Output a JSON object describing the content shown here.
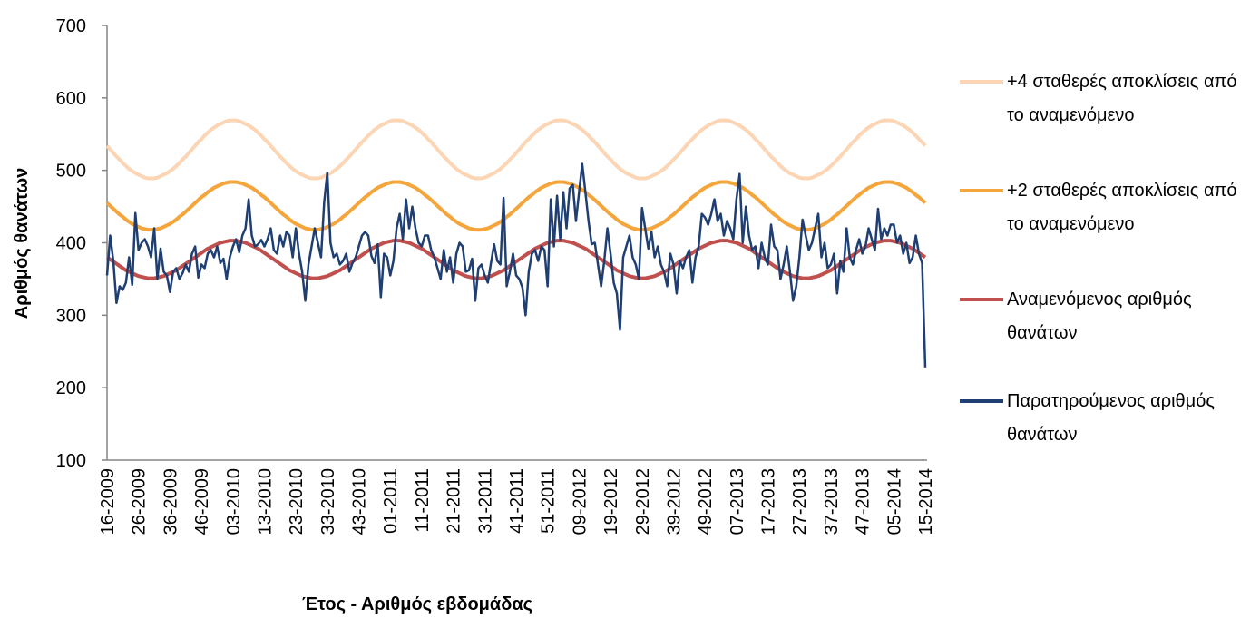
{
  "chart_data": {
    "type": "line",
    "x_label": "Έτος - Αριθμός εβδομάδας",
    "y_label": "Αριθμός θανάτων",
    "ylim": [
      100,
      700
    ],
    "yticks": [
      100,
      200,
      300,
      400,
      500,
      600,
      700
    ],
    "grid": false,
    "legend": "right",
    "categories": [
      "16-2009",
      null,
      null,
      null,
      null,
      null,
      null,
      null,
      null,
      null,
      "26-2009",
      null,
      null,
      null,
      null,
      null,
      null,
      null,
      null,
      null,
      "36-2009",
      null,
      null,
      null,
      null,
      null,
      null,
      null,
      null,
      null,
      "46-2009",
      null,
      null,
      null,
      null,
      null,
      null,
      null,
      null,
      null,
      "03-2010",
      null,
      null,
      null,
      null,
      null,
      null,
      null,
      null,
      null,
      "13-2010",
      null,
      null,
      null,
      null,
      null,
      null,
      null,
      null,
      null,
      "23-2010",
      null,
      null,
      null,
      null,
      null,
      null,
      null,
      null,
      null,
      "33-2010",
      null,
      null,
      null,
      null,
      null,
      null,
      null,
      null,
      null,
      "43-2010",
      null,
      null,
      null,
      null,
      null,
      null,
      null,
      null,
      null,
      "01-2011",
      null,
      null,
      null,
      null,
      null,
      null,
      null,
      null,
      null,
      "11-2011",
      null,
      null,
      null,
      null,
      null,
      null,
      null,
      null,
      null,
      "21-2011",
      null,
      null,
      null,
      null,
      null,
      null,
      null,
      null,
      null,
      "31-2011",
      null,
      null,
      null,
      null,
      null,
      null,
      null,
      null,
      null,
      "41-2011",
      null,
      null,
      null,
      null,
      null,
      null,
      null,
      null,
      null,
      "51-2011",
      null,
      null,
      null,
      null,
      null,
      null,
      null,
      null,
      null,
      "09-2012",
      null,
      null,
      null,
      null,
      null,
      null,
      null,
      null,
      null,
      "19-2012",
      null,
      null,
      null,
      null,
      null,
      null,
      null,
      null,
      null,
      "29-2012",
      null,
      null,
      null,
      null,
      null,
      null,
      null,
      null,
      null,
      "39-2012",
      null,
      null,
      null,
      null,
      null,
      null,
      null,
      null,
      null,
      "49-2012",
      null,
      null,
      null,
      null,
      null,
      null,
      null,
      null,
      null,
      "07-2013",
      null,
      null,
      null,
      null,
      null,
      null,
      null,
      null,
      null,
      "17-2013",
      null,
      null,
      null,
      null,
      null,
      null,
      null,
      null,
      null,
      "27-2013",
      null,
      null,
      null,
      null,
      null,
      null,
      null,
      null,
      null,
      "37-2013",
      null,
      null,
      null,
      null,
      null,
      null,
      null,
      null,
      null,
      "47-2013",
      null,
      null,
      null,
      null,
      null,
      null,
      null,
      null,
      null,
      "05-2014",
      null,
      null,
      null,
      null,
      null,
      null,
      null,
      null,
      null,
      "15-2014"
    ],
    "series": [
      {
        "name": "+4 σταθερές αποκλίσεις από το αναμενόμενο",
        "color": "#fcd5b5",
        "width": 4,
        "values": [
          534,
          529,
          524,
          519,
          515,
          510,
          506,
          502,
          499,
          496,
          494,
          492,
          490,
          489,
          489,
          489,
          490,
          492,
          494,
          496,
          499,
          502,
          506,
          510,
          515,
          519,
          524,
          529,
          534,
          539,
          543,
          548,
          552,
          556,
          559,
          562,
          564,
          566,
          568,
          569,
          569,
          569,
          568,
          566,
          564,
          562,
          559,
          556,
          552,
          548,
          543,
          539,
          534,
          529,
          524,
          519,
          515,
          510,
          506,
          502,
          499,
          496,
          494,
          492,
          490,
          489,
          489,
          489,
          490,
          492,
          494,
          496,
          499,
          502,
          506,
          510,
          515,
          519,
          524,
          529,
          534,
          539,
          543,
          548,
          552,
          556,
          559,
          562,
          564,
          566,
          568,
          569,
          569,
          569,
          568,
          566,
          564,
          562,
          559,
          556,
          552,
          548,
          543,
          539,
          534,
          529,
          524,
          519,
          515,
          510,
          506,
          502,
          499,
          496,
          494,
          492,
          490,
          489,
          489,
          489,
          490,
          492,
          494,
          496,
          499,
          502,
          506,
          510,
          515,
          519,
          524,
          529,
          534,
          539,
          543,
          548,
          552,
          556,
          559,
          562,
          564,
          566,
          568,
          569,
          569,
          569,
          568,
          566,
          564,
          562,
          559,
          556,
          552,
          548,
          543,
          539,
          534,
          529,
          524,
          519,
          515,
          510,
          506,
          502,
          499,
          496,
          494,
          492,
          490,
          489,
          489,
          489,
          490,
          492,
          494,
          496,
          499,
          502,
          506,
          510,
          515,
          519,
          524,
          529,
          534,
          539,
          543,
          548,
          552,
          556,
          559,
          562,
          564,
          566,
          568,
          569,
          569,
          569,
          568,
          566,
          564,
          562,
          559,
          556,
          552,
          548,
          543,
          539,
          534,
          529,
          524,
          519,
          515,
          510,
          506,
          502,
          499,
          496,
          494,
          492,
          490,
          489,
          489,
          489,
          490,
          492,
          494,
          496,
          499,
          502,
          506,
          510,
          515,
          519,
          524,
          529,
          534,
          539,
          543,
          548,
          552,
          556,
          559,
          562,
          564,
          566,
          568,
          569,
          569,
          569,
          568,
          566,
          564,
          562,
          559,
          556,
          552,
          548,
          543,
          539,
          534
        ]
      },
      {
        "name": "+2 σταθερές αποκλίσεις από το αναμενόμενο",
        "color": "#f4a53b",
        "width": 4,
        "values": [
          455,
          451,
          447,
          443,
          439,
          436,
          432,
          429,
          426,
          424,
          422,
          420,
          419,
          418,
          418,
          418,
          419,
          420,
          422,
          424,
          426,
          429,
          432,
          436,
          439,
          443,
          447,
          451,
          455,
          459,
          463,
          466,
          470,
          473,
          476,
          478,
          480,
          482,
          483,
          484,
          484,
          484,
          483,
          482,
          480,
          478,
          476,
          473,
          470,
          466,
          463,
          459,
          455,
          451,
          447,
          443,
          439,
          436,
          432,
          429,
          426,
          424,
          422,
          420,
          419,
          418,
          418,
          418,
          419,
          420,
          422,
          424,
          426,
          429,
          432,
          436,
          439,
          443,
          447,
          451,
          455,
          459,
          463,
          466,
          470,
          473,
          476,
          478,
          480,
          482,
          483,
          484,
          484,
          484,
          483,
          482,
          480,
          478,
          476,
          473,
          470,
          466,
          463,
          459,
          455,
          451,
          447,
          443,
          439,
          436,
          432,
          429,
          426,
          424,
          422,
          420,
          419,
          418,
          418,
          418,
          419,
          420,
          422,
          424,
          426,
          429,
          432,
          436,
          439,
          443,
          447,
          451,
          455,
          459,
          463,
          466,
          470,
          473,
          476,
          478,
          480,
          482,
          483,
          484,
          484,
          484,
          483,
          482,
          480,
          478,
          476,
          473,
          470,
          466,
          463,
          459,
          455,
          451,
          447,
          443,
          439,
          436,
          432,
          429,
          426,
          424,
          422,
          420,
          419,
          418,
          418,
          418,
          419,
          420,
          422,
          424,
          426,
          429,
          432,
          436,
          439,
          443,
          447,
          451,
          455,
          459,
          463,
          466,
          470,
          473,
          476,
          478,
          480,
          482,
          483,
          484,
          484,
          484,
          483,
          482,
          480,
          478,
          476,
          473,
          470,
          466,
          463,
          459,
          455,
          451,
          447,
          443,
          439,
          436,
          432,
          429,
          426,
          424,
          422,
          420,
          419,
          418,
          418,
          418,
          419,
          420,
          422,
          424,
          426,
          429,
          432,
          436,
          439,
          443,
          447,
          451,
          455,
          459,
          463,
          466,
          470,
          473,
          476,
          478,
          480,
          482,
          483,
          484,
          484,
          484,
          483,
          482,
          480,
          478,
          476,
          473,
          470,
          466,
          463,
          459,
          455
        ]
      },
      {
        "name": "Αναμενόμενος αριθμός θανάτων",
        "color": "#c0504d",
        "width": 4,
        "values": [
          380,
          377,
          374,
          371,
          368,
          365,
          362,
          360,
          358,
          356,
          354,
          353,
          352,
          351,
          351,
          351,
          352,
          353,
          354,
          356,
          358,
          360,
          362,
          365,
          368,
          371,
          374,
          377,
          380,
          383,
          386,
          389,
          392,
          394,
          396,
          398,
          400,
          401,
          402,
          403,
          403,
          403,
          402,
          401,
          400,
          398,
          396,
          394,
          392,
          389,
          386,
          383,
          380,
          377,
          374,
          371,
          368,
          365,
          362,
          360,
          358,
          356,
          354,
          353,
          352,
          351,
          351,
          351,
          352,
          353,
          354,
          356,
          358,
          360,
          362,
          365,
          368,
          371,
          374,
          377,
          380,
          383,
          386,
          389,
          392,
          394,
          396,
          398,
          400,
          401,
          402,
          403,
          403,
          403,
          402,
          401,
          400,
          398,
          396,
          394,
          392,
          389,
          386,
          383,
          380,
          377,
          374,
          371,
          368,
          365,
          362,
          360,
          358,
          356,
          354,
          353,
          352,
          351,
          351,
          351,
          352,
          353,
          354,
          356,
          358,
          360,
          362,
          365,
          368,
          371,
          374,
          377,
          380,
          383,
          386,
          389,
          392,
          394,
          396,
          398,
          400,
          401,
          402,
          403,
          403,
          403,
          402,
          401,
          400,
          398,
          396,
          394,
          392,
          389,
          386,
          383,
          380,
          377,
          374,
          371,
          368,
          365,
          362,
          360,
          358,
          356,
          354,
          353,
          352,
          351,
          351,
          351,
          352,
          353,
          354,
          356,
          358,
          360,
          362,
          365,
          368,
          371,
          374,
          377,
          380,
          383,
          386,
          389,
          392,
          394,
          396,
          398,
          400,
          401,
          402,
          403,
          403,
          403,
          402,
          401,
          400,
          398,
          396,
          394,
          392,
          389,
          386,
          383,
          380,
          377,
          374,
          371,
          368,
          365,
          362,
          360,
          358,
          356,
          354,
          353,
          352,
          351,
          351,
          351,
          352,
          353,
          354,
          356,
          358,
          360,
          362,
          365,
          368,
          371,
          374,
          377,
          380,
          383,
          386,
          389,
          392,
          394,
          396,
          398,
          400,
          401,
          402,
          403,
          403,
          403,
          402,
          401,
          400,
          398,
          396,
          394,
          392,
          389,
          386,
          383,
          380
        ]
      },
      {
        "name": "Παρατηρούμενος αριθμός θανάτων",
        "color": "#1f3f73",
        "width": 2.5,
        "values": [
          355,
          410,
          375,
          317,
          340,
          335,
          345,
          380,
          342,
          441,
          390,
          400,
          405,
          395,
          380,
          420,
          350,
          392,
          360,
          355,
          332,
          360,
          365,
          350,
          358,
          370,
          360,
          385,
          395,
          352,
          370,
          365,
          385,
          390,
          380,
          395,
          372,
          378,
          350,
          380,
          395,
          405,
          387,
          410,
          420,
          460,
          410,
          395,
          398,
          404,
          395,
          405,
          420,
          390,
          385,
          410,
          395,
          415,
          410,
          380,
          420,
          385,
          360,
          320,
          370,
          395,
          420,
          400,
          380,
          456,
          497,
          400,
          380,
          385,
          370,
          375,
          385,
          360,
          372,
          380,
          395,
          410,
          415,
          410,
          382,
          372,
          398,
          325,
          385,
          380,
          355,
          375,
          420,
          440,
          405,
          460,
          420,
          450,
          420,
          400,
          395,
          410,
          410,
          390,
          380,
          365,
          350,
          390,
          360,
          380,
          345,
          385,
          400,
          395,
          360,
          362,
          378,
          320,
          365,
          370,
          355,
          345,
          372,
          398,
          375,
          370,
          462,
          340,
          360,
          385,
          355,
          350,
          338,
          300,
          360,
          385,
          390,
          375,
          395,
          390,
          340,
          460,
          395,
          465,
          405,
          470,
          420,
          475,
          480,
          430,
          470,
          509,
          470,
          430,
          398,
          400,
          370,
          340,
          375,
          420,
          385,
          345,
          330,
          280,
          380,
          395,
          410,
          380,
          370,
          350,
          448,
          420,
          392,
          415,
          380,
          395,
          370,
          360,
          340,
          385,
          370,
          330,
          375,
          365,
          380,
          390,
          345,
          380,
          395,
          440,
          435,
          425,
          440,
          460,
          430,
          440,
          410,
          430,
          420,
          405,
          460,
          495,
          400,
          450,
          410,
          390,
          395,
          365,
          400,
          380,
          370,
          425,
          395,
          390,
          350,
          370,
          395,
          360,
          320,
          340,
          380,
          432,
          410,
          390,
          400,
          420,
          440,
          380,
          400,
          365,
          370,
          385,
          330,
          375,
          360,
          420,
          380,
          370,
          390,
          405,
          385,
          395,
          420,
          405,
          390,
          447,
          405,
          420,
          410,
          425,
          425,
          400,
          410,
          385,
          400,
          372,
          380,
          410,
          385,
          372,
          228
        ]
      }
    ]
  }
}
